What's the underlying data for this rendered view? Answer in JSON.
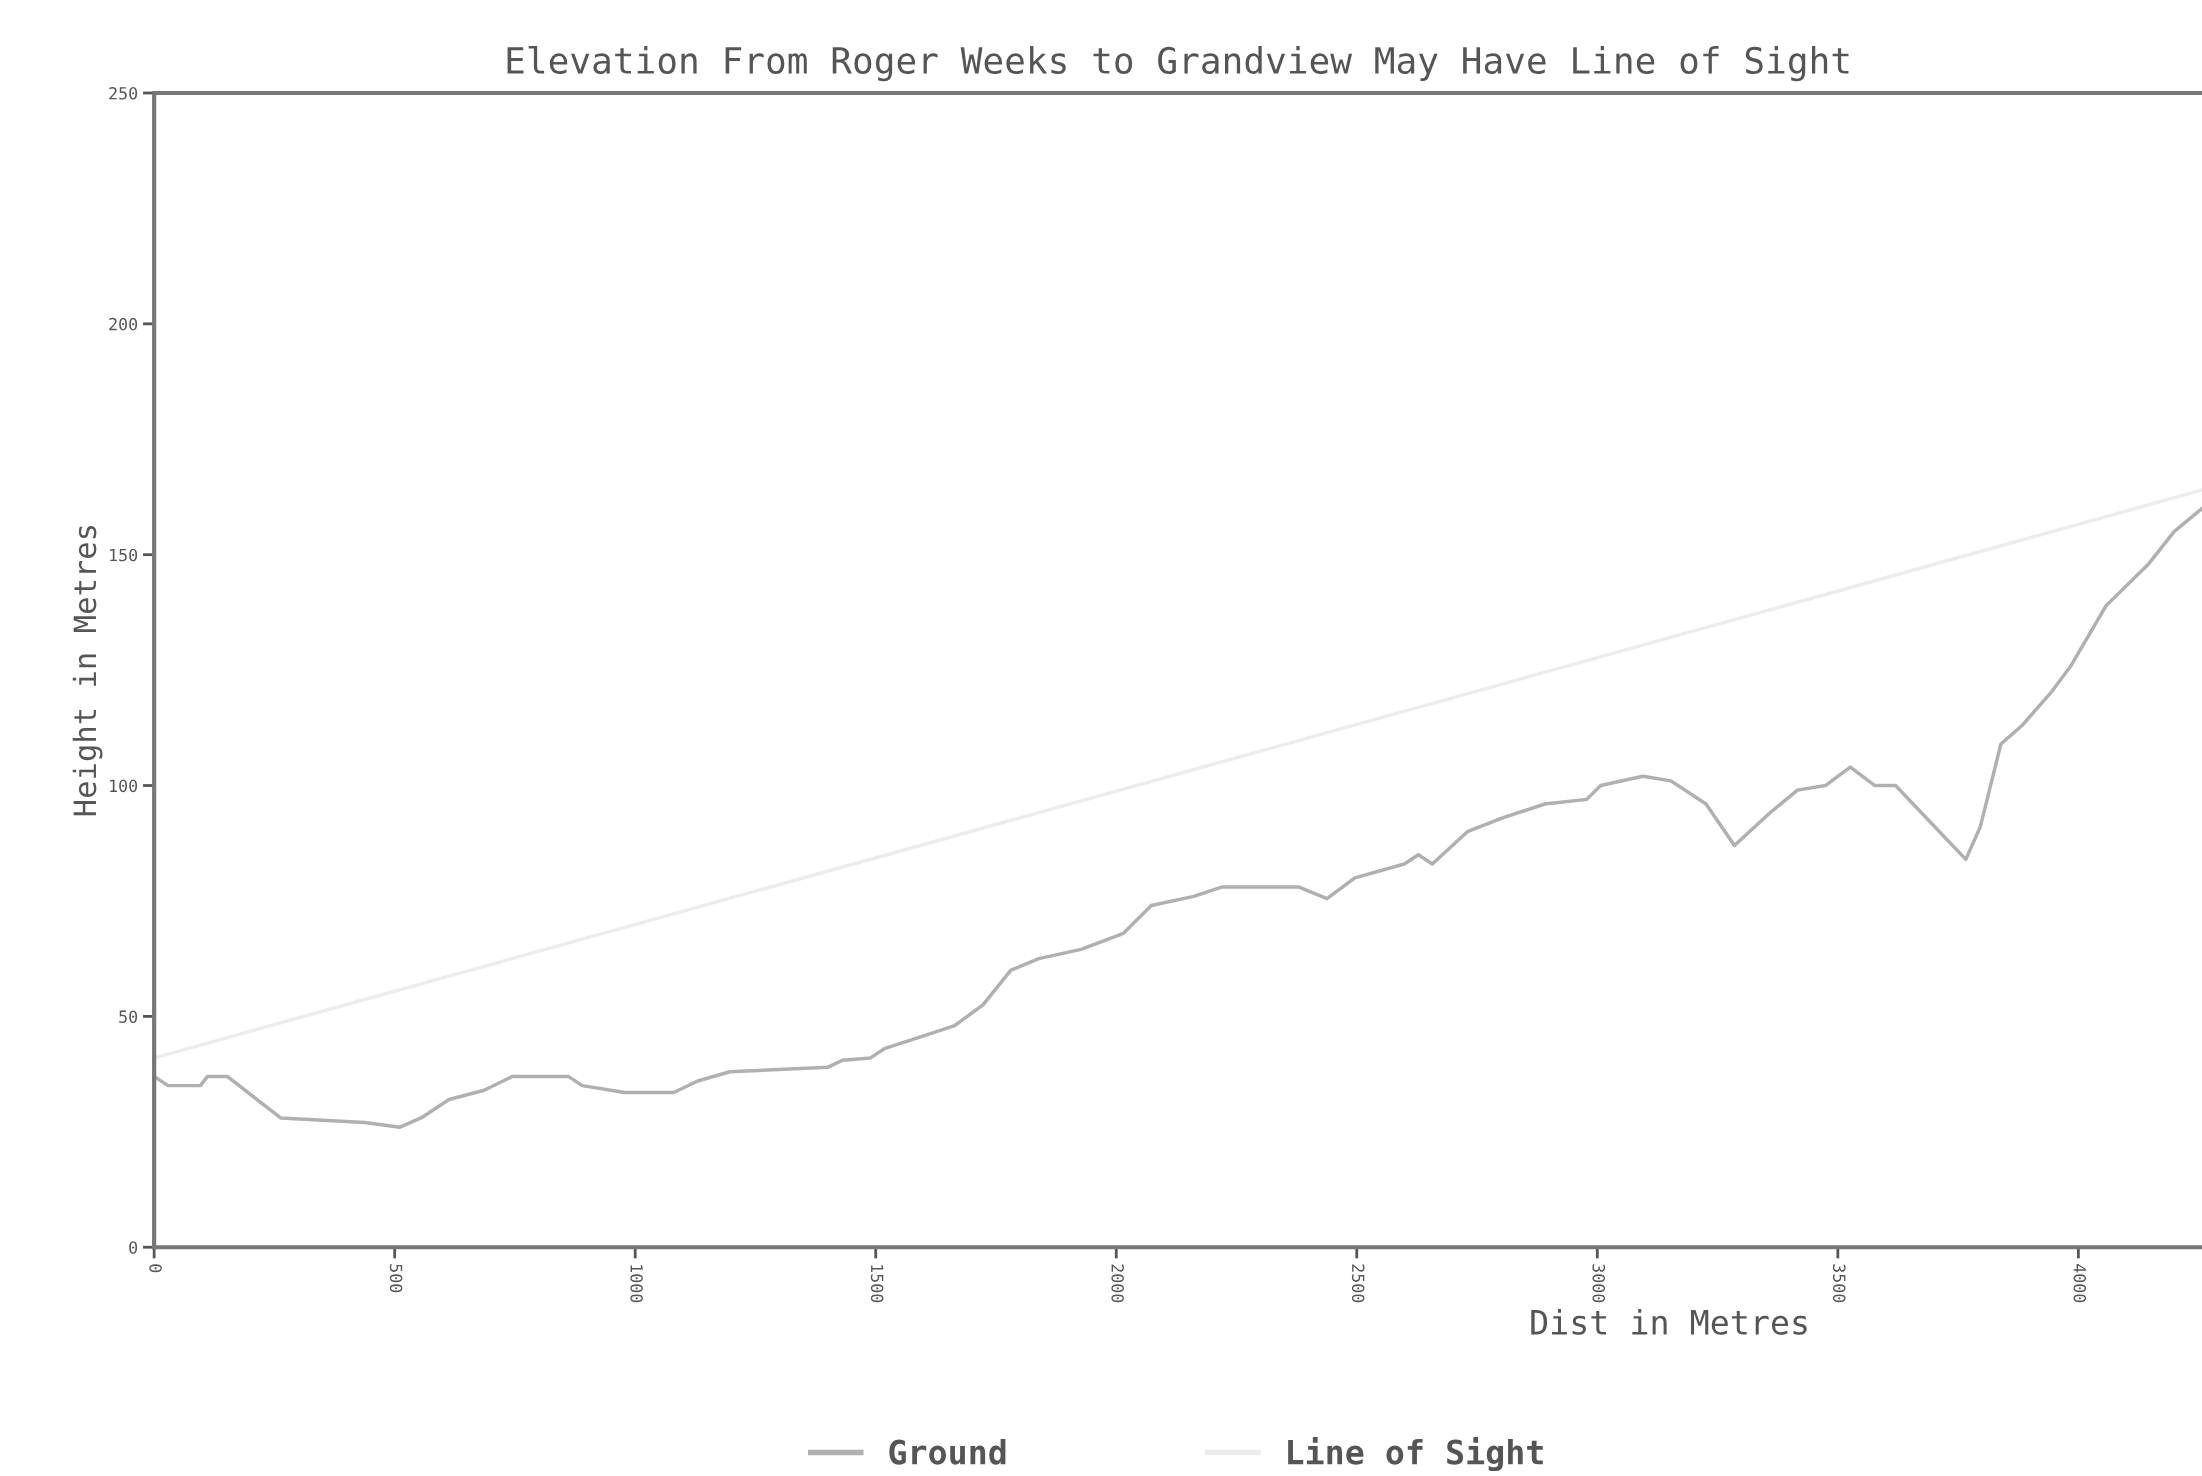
{
  "chart_data": {
    "type": "line",
    "title": "Elevation From Roger Weeks to Grandview May Have Line of Sight",
    "xlabel": "Dist in Metres",
    "ylabel": "Height in Metres",
    "series": [
      {
        "name": "Ground",
        "color": "#b0b0b0",
        "x": [
          0,
          29,
          96,
          111,
          152,
          263,
          438,
          511,
          555,
          613,
          686,
          745,
          861,
          890,
          978,
          1080,
          1130,
          1197,
          1401,
          1431,
          1489,
          1518,
          1606,
          1664,
          1723,
          1781,
          1839,
          1927,
          2015,
          2073,
          2161,
          2219,
          2380,
          2438,
          2496,
          2599,
          2628,
          2657,
          2730,
          2803,
          2891,
          2978,
          3007,
          3095,
          3153,
          3226,
          3285,
          3358,
          3416,
          3474,
          3526,
          3577,
          3620,
          3693,
          3766,
          3796,
          3839,
          3883,
          3942,
          3985,
          4058,
          4146,
          4199,
          4257
        ],
        "values": [
          37,
          35,
          35,
          37,
          37,
          28,
          27,
          26,
          28,
          32,
          34,
          37,
          37,
          35,
          33.5,
          33.5,
          36,
          38,
          39,
          40.5,
          41,
          43,
          46,
          48,
          52.5,
          60,
          62.5,
          64.5,
          68,
          74,
          76,
          78,
          78,
          75.5,
          80,
          83,
          85,
          83,
          90,
          93,
          96,
          97,
          100,
          102,
          101,
          96,
          87,
          94,
          99,
          100,
          104,
          100,
          100,
          92,
          84,
          91,
          109,
          113,
          120,
          126,
          139,
          148,
          155,
          160
        ]
      },
      {
        "name": "Line of Sight",
        "color": "#ececec",
        "x": [
          0,
          4257
        ],
        "values": [
          41,
          164
        ]
      }
    ],
    "xlim": [
      0,
      4257
    ],
    "xticks": [
      0,
      500,
      1000,
      1500,
      2000,
      2500,
      3000,
      3500,
      4000
    ],
    "ylim": [
      0,
      250
    ],
    "yticks": [
      0,
      50,
      100,
      150,
      200,
      250
    ],
    "grid": false,
    "legend": "bottom",
    "marker": "none",
    "line_style": "solid"
  }
}
